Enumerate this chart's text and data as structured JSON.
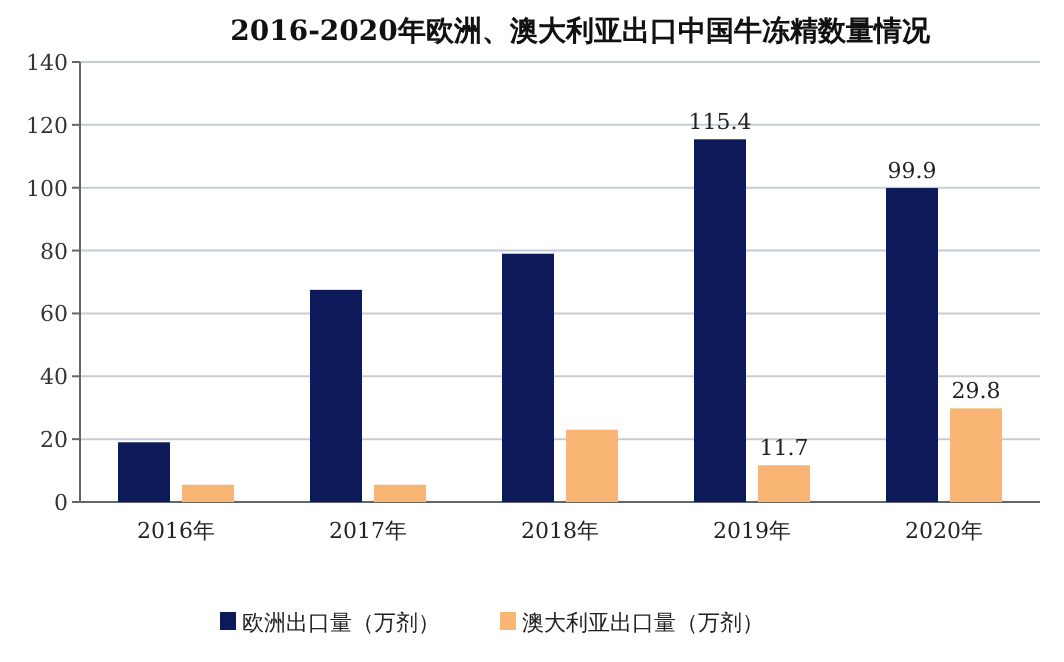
{
  "chart_data": {
    "type": "bar",
    "title": "2016-2020年欧洲、澳大利亚出口中国牛冻精数量情况",
    "categories": [
      "2016年",
      "2017年",
      "2018年",
      "2019年",
      "2020年"
    ],
    "series": [
      {
        "name": "欧洲出口量（万剂）",
        "color": "#0d1b5a",
        "values": [
          19,
          67.5,
          79,
          115.4,
          99.9
        ],
        "value_labels": [
          null,
          null,
          null,
          "115.4",
          "99.9"
        ]
      },
      {
        "name": "澳大利亚出口量（万剂）",
        "color": "#f9b574",
        "values": [
          5.5,
          5.5,
          23,
          11.7,
          29.8
        ],
        "value_labels": [
          null,
          null,
          null,
          "11.7",
          "29.8"
        ]
      }
    ],
    "ylim": [
      0,
      140
    ],
    "yticks": [
      0,
      20,
      40,
      60,
      80,
      100,
      120,
      140
    ],
    "grid": "y",
    "legend": "bottom"
  }
}
